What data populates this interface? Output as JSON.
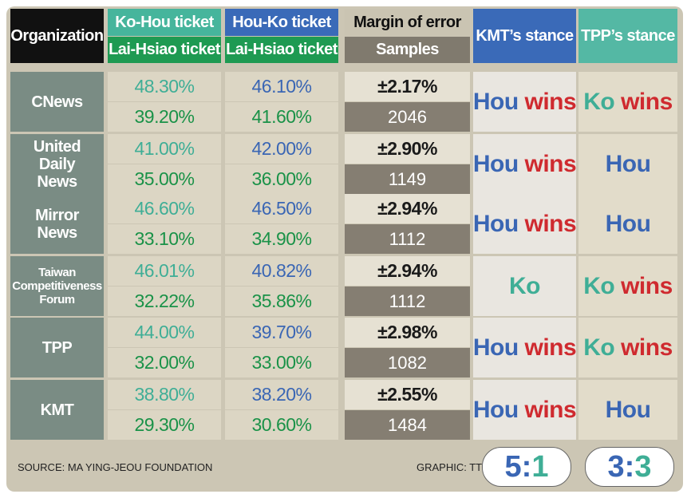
{
  "header": {
    "organization": "Organization",
    "ko_hou_ticket": "Ko-Hou ticket",
    "lai_hsiao_ticket_1": "Lai-Hsiao ticket",
    "hou_ko_ticket": "Hou-Ko ticket",
    "lai_hsiao_ticket_2": "Lai-Hsiao ticket",
    "margin_of_error": "Margin of error",
    "samples": "Samples",
    "kmt_stance": "KMT’s stance",
    "tpp_stance": "TPP’s stance"
  },
  "rows": [
    {
      "org": "CNews",
      "ko_hou": "48.30%",
      "lai_hsiao_a": "39.20%",
      "hou_ko": "46.10%",
      "lai_hsiao_b": "41.60%",
      "moe": "±2.17%",
      "samples": "2046",
      "kmt": {
        "name": "Hou",
        "wins": "wins"
      },
      "tpp": {
        "name": "Ko",
        "wins": "wins"
      }
    },
    {
      "org": "United Daily News",
      "ko_hou": "41.00%",
      "lai_hsiao_a": "35.00%",
      "hou_ko": "42.00%",
      "lai_hsiao_b": "36.00%",
      "moe": "±2.90%",
      "samples": "1149",
      "kmt": {
        "name": "Hou",
        "wins": "wins"
      },
      "tpp": {
        "name": "Hou",
        "wins": ""
      }
    },
    {
      "org": "Mirror News",
      "ko_hou": "46.60%",
      "lai_hsiao_a": "33.10%",
      "hou_ko": "46.50%",
      "lai_hsiao_b": "34.90%",
      "moe": "±2.94%",
      "samples": "1112",
      "kmt": {
        "name": "Hou",
        "wins": "wins"
      },
      "tpp": {
        "name": "Hou",
        "wins": ""
      }
    },
    {
      "org": "Taiwan Competitiveness Forum",
      "ko_hou": "46.01%",
      "lai_hsiao_a": "32.22%",
      "hou_ko": "40.82%",
      "lai_hsiao_b": "35.86%",
      "moe": "±2.94%",
      "samples": "1112",
      "kmt": {
        "name": "Ko",
        "wins": ""
      },
      "tpp": {
        "name": "Ko",
        "wins": "wins"
      }
    },
    {
      "org": "TPP",
      "ko_hou": "44.00%",
      "lai_hsiao_a": "32.00%",
      "hou_ko": "39.70%",
      "lai_hsiao_b": "33.00%",
      "moe": "±2.98%",
      "samples": "1082",
      "kmt": {
        "name": "Hou",
        "wins": "wins"
      },
      "tpp": {
        "name": "Ko",
        "wins": "wins"
      }
    },
    {
      "org": "KMT",
      "ko_hou": "38.80%",
      "lai_hsiao_a": "29.30%",
      "hou_ko": "38.20%",
      "lai_hsiao_b": "30.60%",
      "moe": "±2.55%",
      "samples": "1484",
      "kmt": {
        "name": "Hou",
        "wins": "wins"
      },
      "tpp": {
        "name": "Hou",
        "wins": ""
      }
    }
  ],
  "footer": {
    "source": "SOURCE: MA YING-JEOU FOUNDATION",
    "graphic": "GRAPHIC: TT",
    "kmt_score": {
      "left": "5",
      "sep": ":",
      "right": "1"
    },
    "tpp_score": {
      "left": "3",
      "sep": ":",
      "right": "3"
    }
  },
  "colors": {
    "ko": "#3fae96",
    "hou": "#3a66b4",
    "lai_hsiao": "#1a9248",
    "wins": "#cf2a2f"
  },
  "chart_data": {
    "type": "table",
    "columns": [
      "Organization",
      "Ko-Hou ticket",
      "Lai-Hsiao ticket",
      "Hou-Ko ticket",
      "Lai-Hsiao ticket",
      "Margin of error",
      "Samples",
      "KMT’s stance",
      "TPP’s stance"
    ],
    "rows": [
      [
        "CNews",
        48.3,
        39.2,
        46.1,
        41.6,
        2.17,
        2046,
        "Hou wins",
        "Ko wins"
      ],
      [
        "United Daily News",
        41.0,
        35.0,
        42.0,
        36.0,
        2.9,
        1149,
        "Hou wins",
        "Hou"
      ],
      [
        "Mirror News",
        46.6,
        33.1,
        46.5,
        34.9,
        2.94,
        1112,
        "Hou wins",
        "Hou"
      ],
      [
        "Taiwan Competitiveness Forum",
        46.01,
        32.22,
        40.82,
        35.86,
        2.94,
        1112,
        "Ko",
        "Ko wins"
      ],
      [
        "TPP",
        44.0,
        32.0,
        39.7,
        33.0,
        2.98,
        1082,
        "Hou wins",
        "Ko wins"
      ],
      [
        "KMT",
        38.8,
        29.3,
        38.2,
        30.6,
        2.55,
        1484,
        "Hou wins",
        "Hou"
      ]
    ],
    "tallies": {
      "KMT’s stance": "5:1",
      "TPP’s stance": "3:3"
    }
  }
}
